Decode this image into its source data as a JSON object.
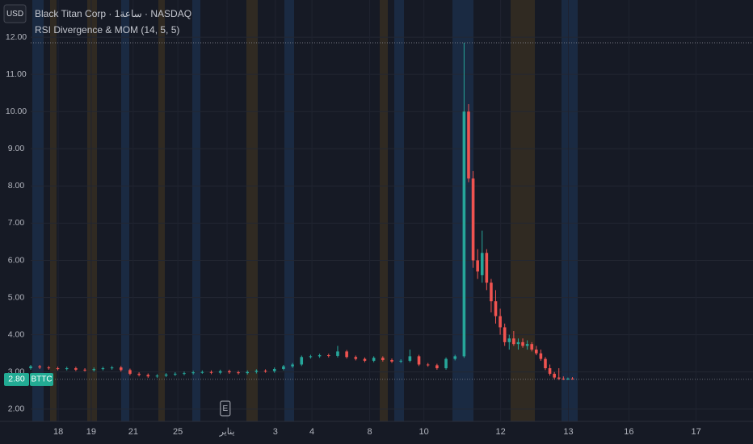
{
  "currency": "USD",
  "chart_data": {
    "type": "candlestick",
    "title": "Black Titan Corp · 1ساعة · NASDAQ",
    "subtitle": "RSI Divergence & MOM (14, 5, 5)",
    "symbol": "BTTC",
    "last_price": {
      "value": 2.8,
      "label": "2.80"
    },
    "up_color": "#26a69a",
    "down_color": "#ef5350",
    "grid": true,
    "ylim": [
      1.67,
      13.0
    ],
    "yticks": [
      {
        "value": 2,
        "label": "2.00"
      },
      {
        "value": 3,
        "label": "3.00"
      },
      {
        "value": 4,
        "label": "4.00"
      },
      {
        "value": 5,
        "label": "5.00"
      },
      {
        "value": 6,
        "label": "6.00"
      },
      {
        "value": 7,
        "label": "7.00"
      },
      {
        "value": 8,
        "label": "8.00"
      },
      {
        "value": 9,
        "label": "9.00"
      },
      {
        "value": 10,
        "label": "10.00"
      },
      {
        "value": 11,
        "label": "11.00"
      },
      {
        "value": 12,
        "label": "12.00"
      }
    ],
    "xlim": [
      0,
      160
    ],
    "xticks": [
      {
        "value": 6.1,
        "label": "18"
      },
      {
        "value": 13.4,
        "label": "19"
      },
      {
        "value": 22.7,
        "label": "21"
      },
      {
        "value": 32.6,
        "label": "25"
      },
      {
        "value": 43.5,
        "label": "يناير"
      },
      {
        "value": 54.2,
        "label": "3"
      },
      {
        "value": 62.3,
        "label": "4"
      },
      {
        "value": 75.1,
        "label": "8"
      },
      {
        "value": 87.1,
        "label": "10"
      },
      {
        "value": 104.1,
        "label": "12"
      },
      {
        "value": 119.1,
        "label": "13"
      },
      {
        "value": 132.5,
        "label": "16"
      },
      {
        "value": 147.4,
        "label": "17"
      }
    ],
    "earnings_marker": {
      "x": 43.1,
      "label": "E"
    },
    "x": [
      0,
      2,
      4,
      6,
      8,
      10,
      12,
      14,
      16,
      18,
      20,
      22,
      24,
      26,
      28,
      30,
      32,
      34,
      36,
      38,
      40,
      42,
      44,
      46,
      48,
      50,
      52,
      54,
      56,
      58,
      60,
      62,
      64,
      66,
      68,
      70,
      72,
      74,
      76,
      78,
      80,
      82,
      84,
      86,
      88,
      90,
      92,
      94,
      96,
      97,
      98,
      99,
      100,
      101,
      102,
      103,
      104,
      105,
      106,
      107,
      108,
      109,
      110,
      111,
      112,
      113,
      114,
      115,
      116,
      117,
      118,
      119,
      120
    ],
    "open": [
      3.1,
      3.15,
      3.12,
      3.1,
      3.08,
      3.1,
      3.06,
      3.05,
      3.08,
      3.1,
      3.12,
      3.05,
      2.95,
      2.92,
      2.88,
      2.9,
      2.93,
      2.95,
      2.97,
      2.99,
      3.0,
      2.98,
      3.02,
      2.99,
      2.97,
      3.0,
      3.03,
      3.02,
      3.08,
      3.15,
      3.2,
      3.4,
      3.42,
      3.45,
      3.43,
      3.55,
      3.4,
      3.35,
      3.3,
      3.38,
      3.32,
      3.28,
      3.3,
      3.42,
      3.2,
      3.18,
      3.1,
      3.35,
      3.42,
      10.0,
      8.2,
      6.0,
      5.6,
      6.2,
      5.4,
      4.9,
      4.5,
      4.2,
      3.8,
      3.9,
      3.75,
      3.8,
      3.7,
      3.75,
      3.6,
      3.5,
      3.35,
      3.1,
      2.95,
      2.85,
      2.82,
      2.8,
      2.82
    ],
    "high": [
      3.19,
      3.19,
      3.16,
      3.14,
      3.14,
      3.14,
      3.1,
      3.12,
      3.14,
      3.16,
      3.16,
      3.09,
      2.99,
      2.96,
      2.94,
      2.97,
      2.99,
      3.01,
      3.03,
      3.04,
      3.04,
      3.06,
      3.06,
      3.03,
      3.04,
      3.07,
      3.07,
      3.12,
      3.19,
      3.24,
      3.44,
      3.46,
      3.49,
      3.49,
      3.7,
      3.59,
      3.44,
      3.39,
      3.42,
      3.42,
      3.36,
      3.34,
      3.6,
      3.46,
      3.24,
      3.22,
      3.39,
      3.46,
      11.85,
      10.2,
      8.4,
      6.3,
      6.8,
      6.3,
      5.5,
      5.2,
      4.7,
      4.3,
      4.0,
      4.1,
      3.9,
      3.9,
      3.85,
      3.8,
      3.7,
      3.6,
      3.4,
      3.2,
      3.0,
      3.1,
      2.88,
      2.85,
      2.86
    ],
    "low": [
      3.06,
      3.08,
      3.06,
      3.04,
      3.04,
      3.02,
      3.01,
      3.01,
      3.04,
      3.06,
      3.01,
      2.91,
      2.88,
      2.84,
      2.84,
      2.86,
      2.89,
      2.91,
      2.93,
      2.95,
      2.94,
      2.94,
      2.95,
      2.93,
      2.93,
      2.96,
      2.98,
      2.98,
      3.04,
      3.11,
      3.16,
      3.36,
      3.38,
      3.39,
      3.39,
      3.36,
      3.31,
      3.26,
      3.26,
      3.28,
      3.24,
      3.24,
      3.26,
      3.16,
      3.14,
      3.06,
      3.06,
      3.31,
      3.38,
      8.1,
      5.8,
      5.5,
      5.4,
      5.2,
      4.6,
      4.3,
      4.0,
      3.7,
      3.6,
      3.7,
      3.6,
      3.65,
      3.6,
      3.55,
      3.45,
      3.3,
      3.05,
      2.9,
      2.8,
      2.78,
      2.78,
      2.78,
      2.79
    ],
    "close": [
      3.15,
      3.12,
      3.1,
      3.08,
      3.1,
      3.06,
      3.05,
      3.08,
      3.1,
      3.12,
      3.05,
      2.95,
      2.92,
      2.88,
      2.9,
      2.93,
      2.95,
      2.97,
      2.99,
      3.0,
      2.98,
      3.02,
      2.99,
      2.97,
      3.0,
      3.03,
      3.02,
      3.08,
      3.15,
      3.2,
      3.4,
      3.42,
      3.45,
      3.43,
      3.55,
      3.4,
      3.35,
      3.3,
      3.38,
      3.32,
      3.28,
      3.3,
      3.42,
      3.2,
      3.18,
      3.1,
      3.35,
      3.42,
      10.0,
      8.2,
      6.0,
      5.7,
      6.2,
      5.4,
      4.9,
      4.5,
      4.2,
      3.8,
      3.9,
      3.75,
      3.8,
      3.7,
      3.75,
      3.6,
      3.5,
      3.35,
      3.1,
      2.95,
      2.85,
      2.82,
      2.8,
      2.82,
      2.8
    ]
  }
}
